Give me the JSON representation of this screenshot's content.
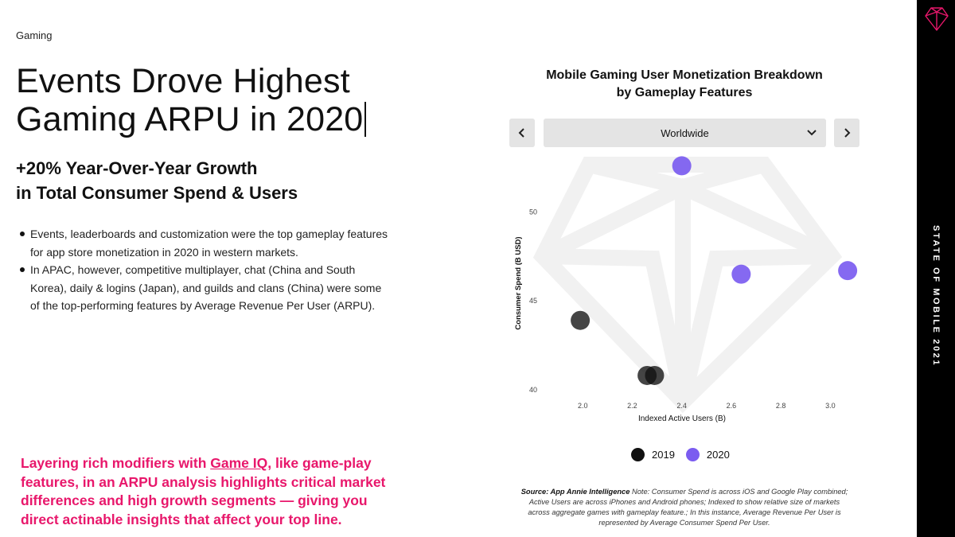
{
  "page": {
    "section_label": "Gaming",
    "headline_lines": [
      "Events Drove Highest",
      "Gaming ARPU in 2020"
    ],
    "subheadline_lines": [
      "+20% Year-Over-Year Growth",
      "in Total Consumer Spend & Users"
    ],
    "bullets": [
      "Events, leaderboards and customization were the top gameplay features for app store monetization in 2020 in western markets.",
      "In APAC, however, competitive multiplayer, chat (China and South Korea), daily & logins (Japan), and guilds and clans (China) were some of the top-performing features by Average Revenue Per User (ARPU)."
    ],
    "cta": {
      "before_link": "Layering rich modifiers with ",
      "link_text": "Game IQ",
      "after_link": ", like game-play features, in an ARPU analysis highlights critical market differences and high growth segments — giving you direct actinable insights that affect your top line."
    },
    "sidebar": {
      "vertical_text": "STATE OF MOBILE 2021",
      "logo_icon": "gem-logo-icon"
    },
    "colors": {
      "accent_pink": "#e8176b",
      "series_2019": "#111111",
      "series_2020": "#7b5cf0",
      "sidebar_bg": "#000000"
    }
  },
  "chart_controls": {
    "region_value": "Worldwide",
    "prev_icon": "chevron-left-icon",
    "next_icon": "chevron-right-icon",
    "dropdown_icon": "chevron-down-icon"
  },
  "source": {
    "label": "Source: App Annie Intelligence",
    "note": "Note: Consumer Spend is across iOS and Google Play combined; Active Users are across iPhones and Android phones; Indexed to show relative size of markets across aggregate games with gameplay feature.; In this instance, Average Revenue Per User is represented by Average Consumer Spend Per User."
  },
  "chart_data": {
    "type": "scatter",
    "title_lines": [
      "Mobile Gaming User Monetization Breakdown",
      "by Gameplay Features"
    ],
    "xlabel": "Indexed Active Users (B)",
    "ylabel": "Consumer Spend (B USD)",
    "xlim": [
      1.8,
      3.15
    ],
    "ylim": [
      39.5,
      53.2
    ],
    "x_ticks": [
      "2.0",
      "2.2",
      "2.4",
      "2.6",
      "2.8",
      "3.0"
    ],
    "y_ticks": [
      "40",
      "45",
      "50"
    ],
    "grid": false,
    "legend_position": "bottom-center",
    "series": [
      {
        "name": "2019",
        "color": "#111111",
        "points": [
          {
            "x": 1.99,
            "y": 43.9
          },
          {
            "x": 2.26,
            "y": 40.8
          },
          {
            "x": 2.29,
            "y": 40.8
          }
        ]
      },
      {
        "name": "2020",
        "color": "#7b5cf0",
        "points": [
          {
            "x": 2.4,
            "y": 52.6
          },
          {
            "x": 2.64,
            "y": 46.5
          },
          {
            "x": 3.07,
            "y": 46.7
          }
        ]
      }
    ]
  }
}
